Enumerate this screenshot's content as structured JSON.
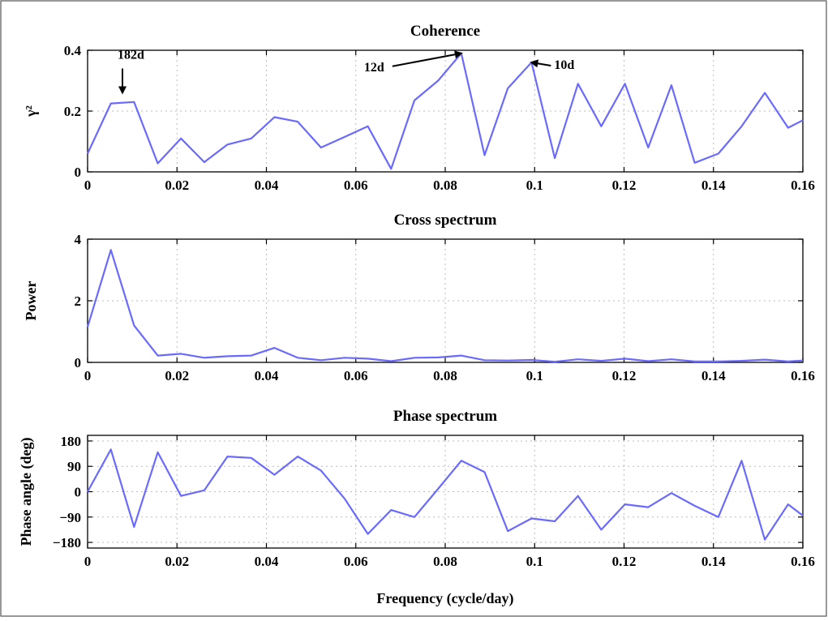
{
  "colors": {
    "series": "#6a6aff",
    "text": "#000000"
  },
  "chart_data": [
    {
      "type": "line",
      "title": "Coherence",
      "xlabel": "",
      "ylabel": "γ²",
      "xlim": [
        0,
        0.16
      ],
      "ylim": [
        0,
        0.4
      ],
      "x_ticks": [
        "0",
        "0.02",
        "0.04",
        "0.06",
        "0.08",
        "0.1",
        "0.12",
        "0.14",
        "0.16"
      ],
      "y_ticks": [
        {
          "value": 0,
          "label": "0"
        },
        {
          "value": 0.2,
          "label": "0.2"
        },
        {
          "value": 0.4,
          "label": "0.4"
        }
      ],
      "grid": true,
      "x": [
        0,
        0.0052,
        0.0104,
        0.0157,
        0.0209,
        0.0261,
        0.0313,
        0.0366,
        0.0418,
        0.047,
        0.0522,
        0.0575,
        0.0627,
        0.0679,
        0.0731,
        0.0784,
        0.0836,
        0.0888,
        0.094,
        0.0993,
        0.1045,
        0.1097,
        0.1149,
        0.1202,
        0.1254,
        0.1306,
        0.1358,
        0.1411,
        0.1463,
        0.1515,
        0.1567,
        0.16
      ],
      "values": [
        0.06,
        0.225,
        0.23,
        0.028,
        0.11,
        0.032,
        0.09,
        0.11,
        0.18,
        0.165,
        0.08,
        0.115,
        0.15,
        0.01,
        0.235,
        0.3,
        0.39,
        0.055,
        0.275,
        0.36,
        0.045,
        0.29,
        0.15,
        0.29,
        0.08,
        0.285,
        0.03,
        0.06,
        0.15,
        0.26,
        0.145,
        0.17
      ],
      "annotations": [
        {
          "text": "182d",
          "x": 0.0078,
          "y": 0.26
        },
        {
          "text": "12d",
          "x": 0.0836,
          "y": 0.39
        },
        {
          "text": "10d",
          "x": 0.0993,
          "y": 0.36
        }
      ]
    },
    {
      "type": "line",
      "title": "Cross spectrum",
      "xlabel": "",
      "ylabel": "Power",
      "xlim": [
        0,
        0.16
      ],
      "ylim": [
        0,
        4
      ],
      "x_ticks": [
        "0",
        "0.02",
        "0.04",
        "0.06",
        "0.08",
        "0.1",
        "0.12",
        "0.14",
        "0.16"
      ],
      "y_ticks": [
        {
          "value": 0,
          "label": "0"
        },
        {
          "value": 2,
          "label": "2"
        },
        {
          "value": 4,
          "label": "4"
        }
      ],
      "grid": true,
      "x": [
        0,
        0.0052,
        0.0104,
        0.0157,
        0.0209,
        0.0261,
        0.0313,
        0.0366,
        0.0418,
        0.047,
        0.0522,
        0.0575,
        0.0627,
        0.0679,
        0.0731,
        0.0784,
        0.0836,
        0.0888,
        0.094,
        0.0993,
        0.1045,
        0.1097,
        0.1149,
        0.1202,
        0.1254,
        0.1306,
        0.1358,
        0.1411,
        0.1463,
        0.1515,
        0.1567,
        0.16
      ],
      "values": [
        1.15,
        3.65,
        1.2,
        0.22,
        0.28,
        0.15,
        0.2,
        0.22,
        0.47,
        0.15,
        0.07,
        0.15,
        0.12,
        0.04,
        0.15,
        0.16,
        0.22,
        0.07,
        0.06,
        0.08,
        0.02,
        0.1,
        0.05,
        0.12,
        0.04,
        0.1,
        0.03,
        0.03,
        0.05,
        0.09,
        0.03,
        0.06
      ]
    },
    {
      "type": "line",
      "title": "Phase spectrum",
      "xlabel": "Frequency (cycle/day)",
      "ylabel": "Phase angle (deg)",
      "xlim": [
        0,
        0.16
      ],
      "ylim": [
        -200,
        200
      ],
      "x_ticks": [
        "0",
        "0.02",
        "0.04",
        "0.06",
        "0.08",
        "0.1",
        "0.12",
        "0.14",
        "0.16"
      ],
      "y_ticks": [
        {
          "value": 180,
          "label": "180"
        },
        {
          "value": 90,
          "label": "90"
        },
        {
          "value": 0,
          "label": "0"
        },
        {
          "value": -90,
          "label": "−90"
        },
        {
          "value": -180,
          "label": "−180"
        }
      ],
      "grid": true,
      "x": [
        0,
        0.0052,
        0.0104,
        0.0157,
        0.0209,
        0.0261,
        0.0313,
        0.0366,
        0.0418,
        0.047,
        0.0522,
        0.0575,
        0.0627,
        0.0679,
        0.0731,
        0.0784,
        0.0836,
        0.0888,
        0.094,
        0.0993,
        0.1045,
        0.1097,
        0.1149,
        0.1202,
        0.1254,
        0.1306,
        0.1358,
        0.1411,
        0.1463,
        0.1515,
        0.1567,
        0.16
      ],
      "values": [
        0,
        150,
        -125,
        140,
        -15,
        5,
        125,
        120,
        60,
        125,
        75,
        -25,
        -150,
        -65,
        -90,
        10,
        110,
        70,
        -140,
        -95,
        -105,
        -15,
        -135,
        -45,
        -55,
        -5,
        -50,
        -90,
        110,
        -170,
        -45,
        -85
      ]
    }
  ]
}
